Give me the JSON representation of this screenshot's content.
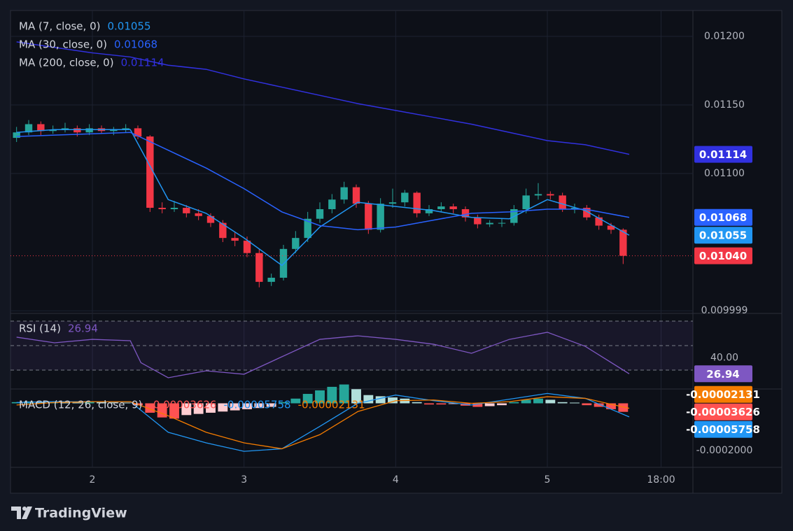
{
  "brand": "TradingView",
  "chart_data": [
    {
      "type": "candlestick",
      "x": [
        1.5,
        1.58,
        1.66,
        1.74,
        1.82,
        1.9,
        1.98,
        2.06,
        2.14,
        2.22,
        2.3,
        2.38,
        2.46,
        2.54,
        2.62,
        2.7,
        2.78,
        2.86,
        2.94,
        3.02,
        3.1,
        3.18,
        3.26,
        3.34,
        3.42,
        3.5,
        3.58,
        3.66,
        3.74,
        3.82,
        3.9,
        3.98,
        4.06,
        4.14,
        4.22,
        4.3,
        4.38,
        4.46,
        4.54,
        4.62,
        4.7,
        4.78,
        4.86,
        4.94,
        5.02,
        5.1,
        5.18,
        5.26,
        5.34,
        5.42,
        5.5
      ],
      "open": [
        0.01126,
        0.0113,
        0.01136,
        0.01131,
        0.01132,
        0.01133,
        0.0113,
        0.01133,
        0.01131,
        0.01132,
        0.01133,
        0.01127,
        0.01075,
        0.01074,
        0.01075,
        0.01071,
        0.01069,
        0.01064,
        0.01053,
        0.01051,
        0.01042,
        0.01021,
        0.01024,
        0.01045,
        0.01053,
        0.01067,
        0.01074,
        0.01081,
        0.0109,
        0.01078,
        0.01059,
        0.01078,
        0.01079,
        0.01086,
        0.01071,
        0.01074,
        0.01076,
        0.01074,
        0.01068,
        0.01063,
        0.01064,
        0.01064,
        0.01074,
        0.01084,
        0.01085,
        0.01084,
        0.01074,
        0.01075,
        0.01068,
        0.01062,
        0.01059
      ],
      "high": [
        0.01134,
        0.01139,
        0.01138,
        0.01135,
        0.01137,
        0.01135,
        0.01136,
        0.01135,
        0.01134,
        0.01136,
        0.01135,
        0.01128,
        0.01079,
        0.0108,
        0.01077,
        0.01074,
        0.01071,
        0.01066,
        0.01057,
        0.01054,
        0.01045,
        0.01027,
        0.01048,
        0.01058,
        0.01072,
        0.01079,
        0.01085,
        0.01094,
        0.01092,
        0.0108,
        0.01082,
        0.01089,
        0.01088,
        0.01087,
        0.01077,
        0.01079,
        0.01078,
        0.01076,
        0.0107,
        0.01066,
        0.01067,
        0.01077,
        0.01089,
        0.01093,
        0.01087,
        0.01086,
        0.01078,
        0.01077,
        0.0107,
        0.01064,
        0.0106
      ],
      "low": [
        0.01123,
        0.01128,
        0.01128,
        0.01129,
        0.0113,
        0.01127,
        0.01128,
        0.01129,
        0.01128,
        0.0113,
        0.01125,
        0.01072,
        0.01071,
        0.01072,
        0.01068,
        0.01066,
        0.01061,
        0.0105,
        0.01047,
        0.01039,
        0.01017,
        0.01018,
        0.01022,
        0.01042,
        0.0105,
        0.01064,
        0.01071,
        0.01078,
        0.01075,
        0.01056,
        0.01057,
        0.01075,
        0.01076,
        0.01068,
        0.01069,
        0.01072,
        0.01071,
        0.01065,
        0.0106,
        0.01061,
        0.01061,
        0.01062,
        0.01071,
        0.01081,
        0.01081,
        0.01072,
        0.01071,
        0.01066,
        0.01059,
        0.01056,
        0.01034
      ],
      "close": [
        0.0113,
        0.01136,
        0.01131,
        0.01132,
        0.01133,
        0.0113,
        0.01133,
        0.01131,
        0.01132,
        0.01133,
        0.01127,
        0.01075,
        0.01074,
        0.01075,
        0.01071,
        0.01069,
        0.01064,
        0.01053,
        0.01051,
        0.01042,
        0.01021,
        0.01024,
        0.01045,
        0.01053,
        0.01067,
        0.01074,
        0.01081,
        0.0109,
        0.01078,
        0.01059,
        0.01078,
        0.01079,
        0.01086,
        0.01071,
        0.01074,
        0.01076,
        0.01074,
        0.01068,
        0.01063,
        0.01064,
        0.01064,
        0.01074,
        0.01084,
        0.01085,
        0.01084,
        0.01074,
        0.01075,
        0.01068,
        0.01062,
        0.01059,
        0.0104
      ],
      "close_label": "0.01040",
      "up_color": "#26a69a",
      "down_color": "#f23645",
      "series": [
        {
          "name": "MA (7, close, 0)",
          "color": "#2196f3",
          "x": [
            1.5,
            1.75,
            2,
            2.25,
            2.5,
            2.75,
            3,
            3.25,
            3.5,
            3.75,
            4,
            4.25,
            4.5,
            4.75,
            5,
            5.25,
            5.54
          ],
          "values": [
            0.0113,
            0.01132,
            0.01132,
            0.01132,
            0.01081,
            0.01071,
            0.01053,
            0.01033,
            0.01061,
            0.01079,
            0.01076,
            0.01073,
            0.01068,
            0.01067,
            0.01081,
            0.01073,
            0.01055
          ]
        },
        {
          "name": "MA (30, close, 0)",
          "color": "#2962ff",
          "x": [
            1.5,
            1.75,
            2,
            2.25,
            2.5,
            2.75,
            3,
            3.25,
            3.5,
            3.75,
            4,
            4.25,
            4.5,
            4.75,
            5,
            5.25,
            5.54
          ],
          "values": [
            0.01127,
            0.01128,
            0.01129,
            0.0113,
            0.01117,
            0.01104,
            0.01089,
            0.01072,
            0.01062,
            0.01059,
            0.01061,
            0.01066,
            0.01071,
            0.01072,
            0.01074,
            0.01074,
            0.01068
          ]
        },
        {
          "name": "MA (200, close, 0)",
          "color": "#3131e0",
          "x": [
            1.5,
            1.75,
            2,
            2.25,
            2.5,
            2.75,
            3,
            3.25,
            3.5,
            3.75,
            4,
            4.25,
            4.5,
            4.75,
            5,
            5.25,
            5.54
          ],
          "values": [
            0.01196,
            0.01192,
            0.01188,
            0.01185,
            0.01179,
            0.01176,
            0.01169,
            0.01163,
            0.01157,
            0.01151,
            0.01146,
            0.01141,
            0.01136,
            0.0113,
            0.01124,
            0.01121,
            0.01114
          ]
        }
      ],
      "xlim": [
        1.46,
        5.96
      ],
      "ylim": [
        0.009995,
        0.012189
      ],
      "yticks": [
        {
          "value": 0.012,
          "label": "0.01200"
        },
        {
          "value": 0.0115,
          "label": "0.01150"
        },
        {
          "value": 0.011,
          "label": "0.01100"
        },
        {
          "value": 0.009999,
          "label": "0.009999"
        }
      ],
      "grid": true
    },
    {
      "type": "line",
      "name": "RSI (14)",
      "color": "#7e57c2",
      "x": [
        1.5,
        1.75,
        2,
        2.25,
        2.32,
        2.5,
        2.75,
        3,
        3.25,
        3.5,
        3.75,
        4,
        4.25,
        4.5,
        4.75,
        5,
        5.25,
        5.54
      ],
      "values": [
        56.9,
        52.3,
        55.1,
        54,
        36,
        23.7,
        29.4,
        26.6,
        40.9,
        55.1,
        58,
        55.1,
        51.1,
        43.7,
        55.1,
        60.9,
        49.4,
        26.94
      ],
      "levels": [
        70,
        50,
        30
      ],
      "xlim": [
        1.46,
        5.96
      ],
      "ylim": [
        15.1,
        72.3
      ],
      "yticks": [
        {
          "value": 40,
          "label": "40.00"
        }
      ]
    },
    {
      "type": "macd",
      "name": "MACD (12, 26, close, 9)",
      "histogram": {
        "color": "#ff5252",
        "colors": [
          "#26a69a",
          "#b2dfdb",
          "#ff5252",
          "#ffcdd2"
        ],
        "x": [
          1.5,
          1.58,
          1.66,
          1.74,
          1.82,
          1.9,
          1.98,
          2.06,
          2.14,
          2.22,
          2.3,
          2.38,
          2.46,
          2.54,
          2.62,
          2.7,
          2.78,
          2.86,
          2.94,
          3.02,
          3.1,
          3.18,
          3.26,
          3.34,
          3.42,
          3.5,
          3.58,
          3.66,
          3.74,
          3.82,
          3.9,
          3.98,
          4.06,
          4.14,
          4.22,
          4.3,
          4.38,
          4.46,
          4.54,
          4.62,
          4.7,
          4.78,
          4.86,
          4.94,
          5.02,
          5.1,
          5.18,
          5.26,
          5.34,
          5.42,
          5.5
        ],
        "values": [
          5e-06,
          8e-06,
          6e-06,
          7e-06,
          5e-06,
          4e-06,
          6e-06,
          5e-06,
          4e-06,
          3e-06,
          -8e-06,
          -4e-05,
          -6e-05,
          -6.5e-05,
          -5e-05,
          -4.5e-05,
          -4e-05,
          -3.5e-05,
          -3e-05,
          -2.5e-05,
          -2e-05,
          -1.5e-05,
          5e-06,
          2e-05,
          4e-05,
          5.5e-05,
          7e-05,
          8e-05,
          6e-05,
          3.5e-05,
          3e-05,
          2.5e-05,
          2e-05,
          5e-06,
          -5e-06,
          -5e-06,
          -3e-06,
          -1e-05,
          -1.5e-05,
          -1.2e-05,
          -8e-06,
          5e-06,
          1.5e-05,
          2e-05,
          1.5e-05,
          5e-06,
          3e-06,
          -8e-06,
          -1.5e-05,
          -2.5e-05,
          -3.626e-05
        ]
      },
      "series": [
        {
          "color": "#2196f3",
          "x": [
            1.5,
            1.75,
            2,
            2.25,
            2.5,
            2.75,
            3,
            3.25,
            3.5,
            3.75,
            4,
            4.25,
            4.5,
            4.75,
            5,
            5.25,
            5.54
          ],
          "values": [
            3.5e-06,
            7e-06,
            7e-06,
            7e-06,
            -0.000123,
            -0.000168,
            -0.000204,
            -0.000193,
            -9.8e-05,
            0,
            3.5e-05,
            1.1e-05,
            -7e-06,
            1.75e-05,
            4.2e-05,
            2.1e-05,
            -5.758e-05
          ]
        },
        {
          "color": "#f57c00",
          "x": [
            1.5,
            1.75,
            2,
            2.25,
            2.5,
            2.75,
            3,
            3.25,
            3.5,
            3.75,
            4,
            4.25,
            4.5,
            4.75,
            5,
            5.25,
            5.54
          ],
          "values": [
            -7e-06,
            3.5e-06,
            7e-06,
            7e-06,
            -5.3e-05,
            -0.000123,
            -0.000168,
            -0.000193,
            -0.000133,
            -3.5e-05,
            1.1e-05,
            1.4e-05,
            0,
            7e-06,
            2.8e-05,
            2.1e-05,
            -2.131e-05
          ]
        }
      ],
      "xlim": [
        1.46,
        5.96
      ],
      "ylim": [
        -0.000263,
        5.79e-05
      ],
      "yticks": [
        {
          "value": -0.0002,
          "label": "-0.0002000"
        }
      ],
      "xticks": [
        2,
        3,
        4,
        5,
        {
          "value": 5.75,
          "label": "18:00"
        }
      ]
    }
  ]
}
